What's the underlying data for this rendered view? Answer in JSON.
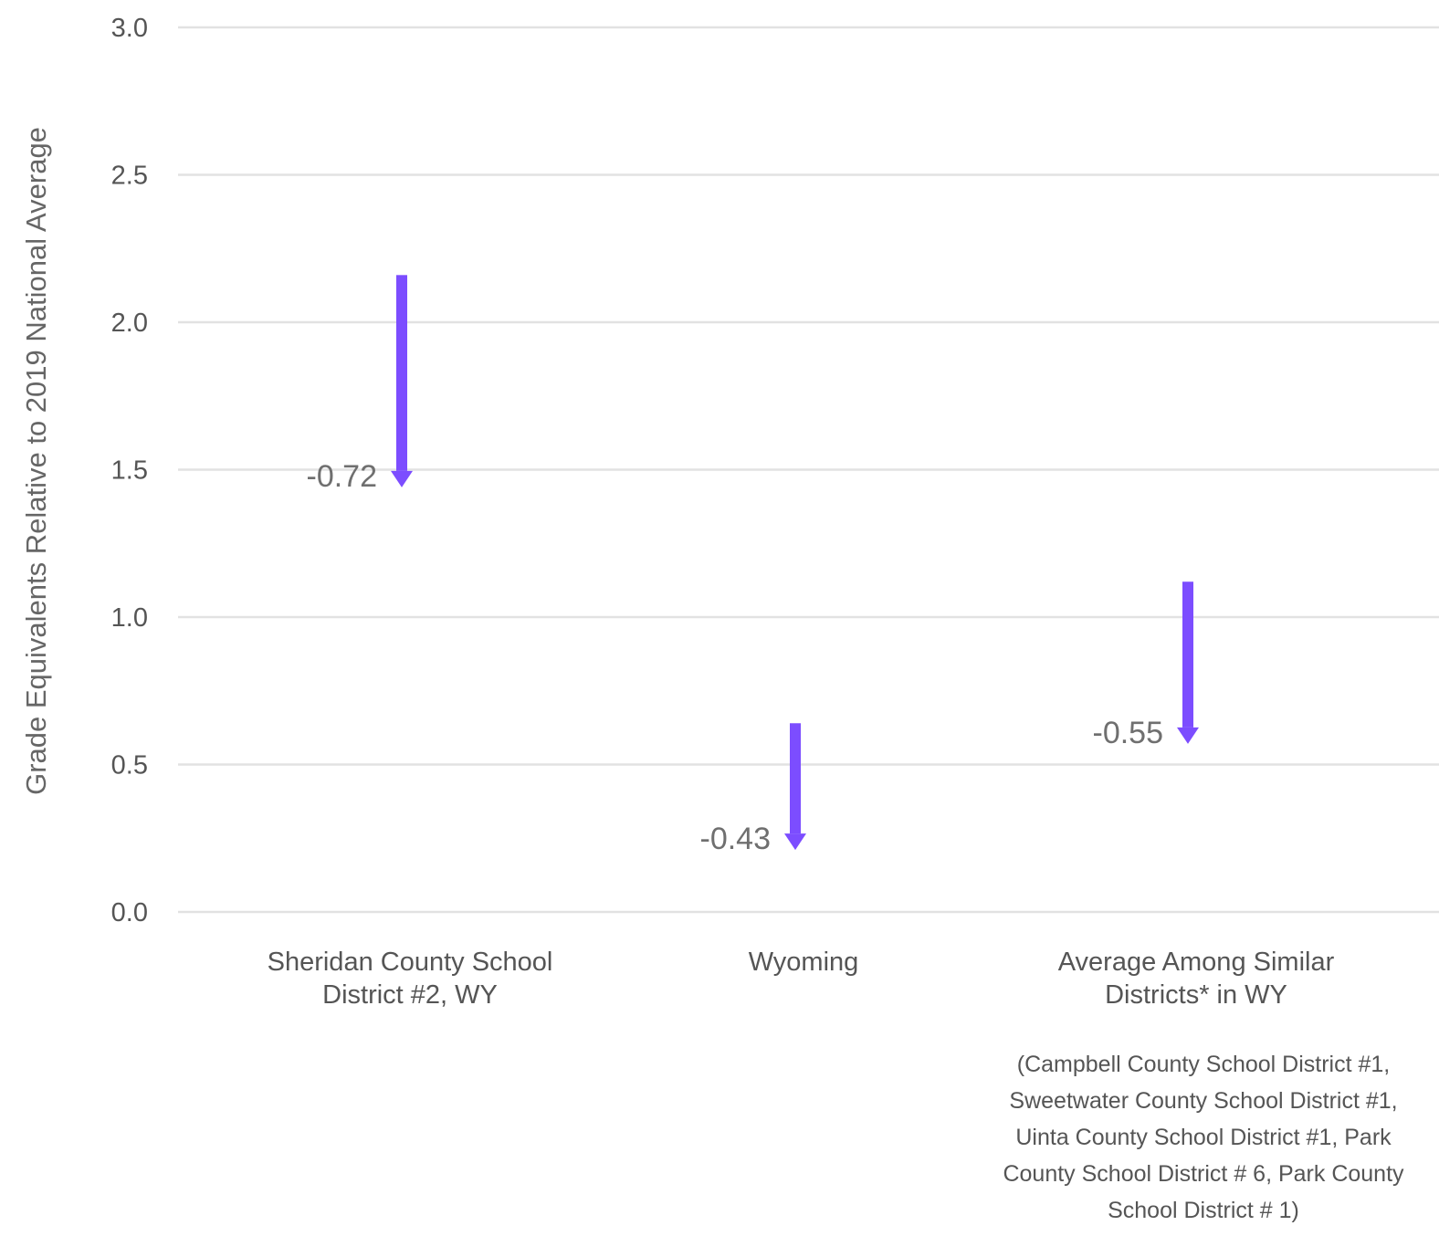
{
  "chart_data": {
    "type": "arrow",
    "ylabel": "Grade Equivalents Relative to 2019 National Average",
    "ylim": [
      0,
      3
    ],
    "yticks": [
      "0.0",
      "0.5",
      "1.0",
      "1.5",
      "2.0",
      "2.5",
      "3.0"
    ],
    "grid": true,
    "colors": {
      "arrow": "#7c4dff",
      "grid": "#e2e2e2",
      "text": "#555555"
    },
    "categories": [
      [
        "Sheridan County School",
        "District #2, WY"
      ],
      [
        "Wyoming"
      ],
      [
        "Average Among Similar",
        "Districts* in WY"
      ]
    ],
    "series": [
      {
        "start": 2.16,
        "end": 1.44,
        "change": -0.72,
        "label": "-0.72"
      },
      {
        "start": 0.64,
        "end": 0.21,
        "change": -0.43,
        "label": "-0.43"
      },
      {
        "start": 1.12,
        "end": 0.57,
        "change": -0.55,
        "label": "-0.55"
      }
    ],
    "note": [
      "(Campbell County School District #1,",
      "Sweetwater County School District #1,",
      "Uinta County School District #1, Park",
      "County School District # 6, Park County",
      "School District # 1)"
    ]
  }
}
